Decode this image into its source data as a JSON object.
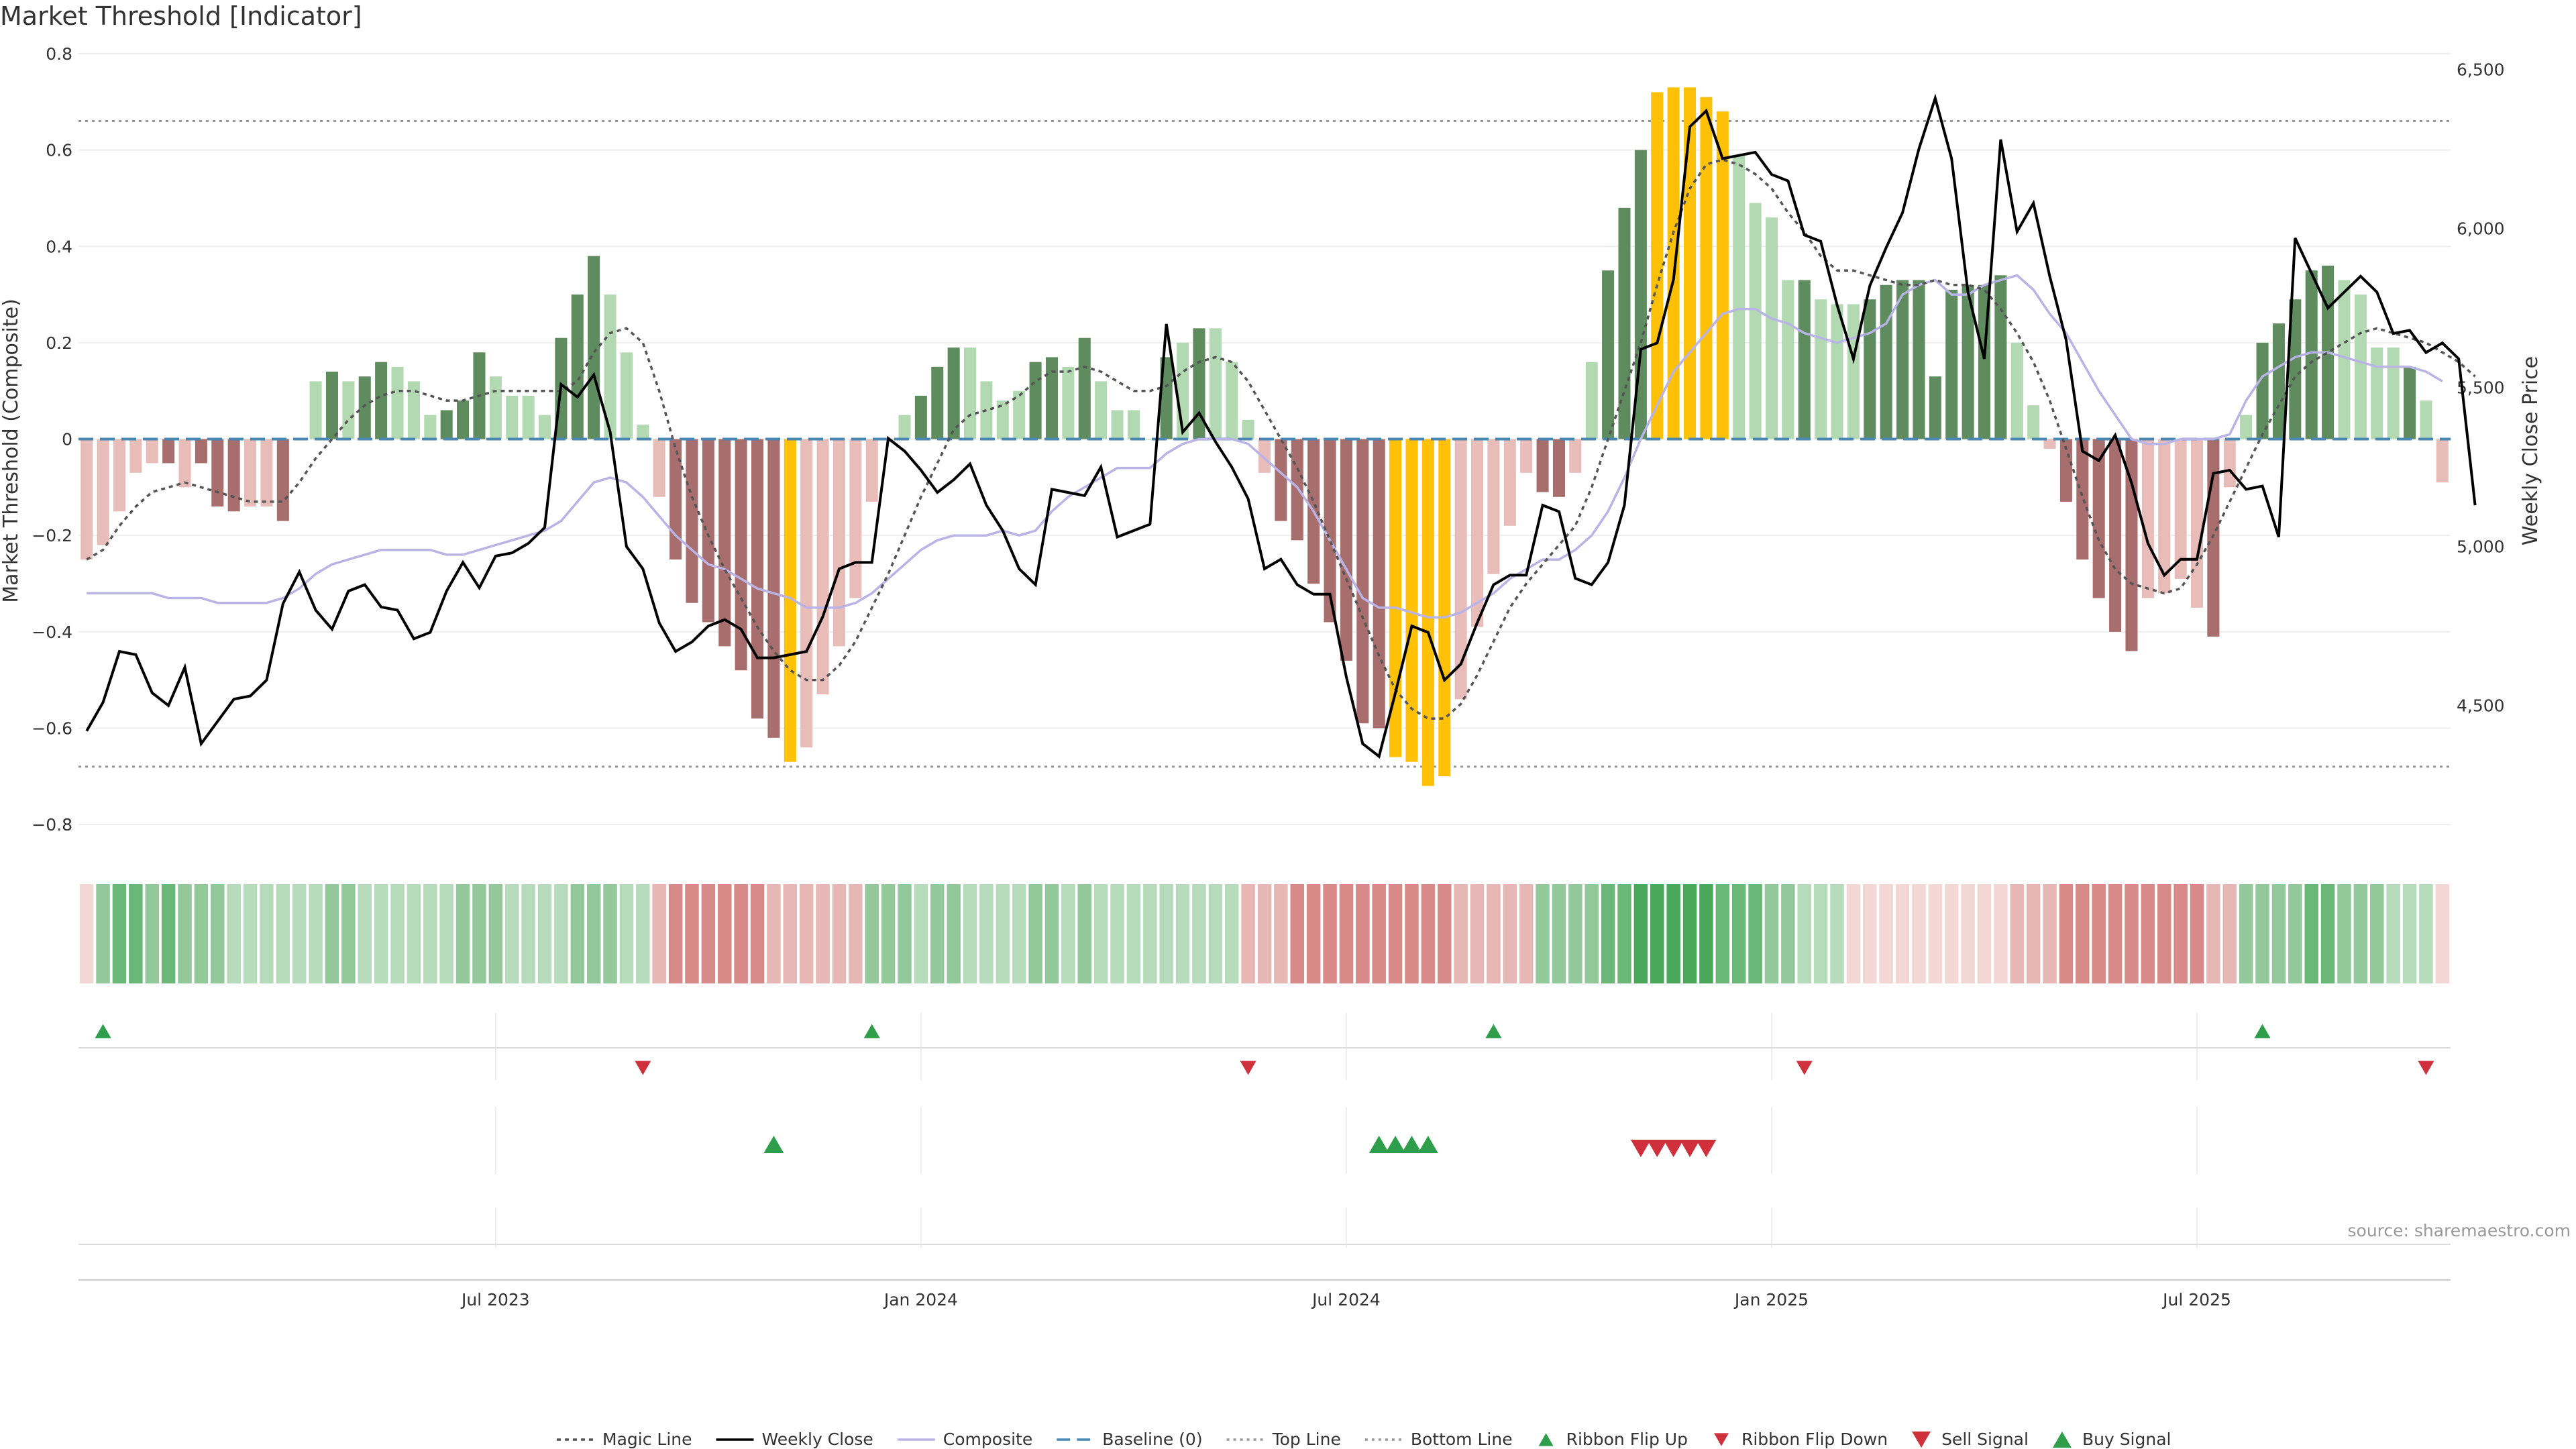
{
  "title": "Market Threshold [Indicator]",
  "source": "source: sharemaestro.com",
  "chart_data": {
    "type": "bar",
    "title": "Market Threshold [Indicator]",
    "ylabel": "Market Threshold (Composite)",
    "y2label": "Weekly Close Price",
    "ylim": [
      -0.85,
      0.8
    ],
    "y2lim": [
      4050,
      6550
    ],
    "yticks": [
      0.8,
      0.6,
      0.4,
      0.2,
      0,
      -0.2,
      -0.4,
      -0.6,
      -0.8
    ],
    "yticklabels": [
      "0.8",
      "0.6",
      "0.4",
      "0.2",
      "0",
      "−0.2",
      "−0.4",
      "−0.6",
      "−0.8"
    ],
    "y2ticks": [
      6500,
      6000,
      5500,
      5000,
      4500
    ],
    "y2ticklabels": [
      "6,500",
      "6,000",
      "5,500",
      "5,000",
      "4,500"
    ],
    "xticks": [
      25,
      51,
      77,
      103,
      129
    ],
    "xticklabels": [
      "Jul 2023",
      "Jan 2024",
      "Jul 2024",
      "Jan 2025",
      "Jul 2025"
    ],
    "top_line": 0.66,
    "bottom_line": -0.68,
    "composite": [
      -0.25,
      -0.22,
      -0.15,
      -0.07,
      -0.05,
      -0.05,
      -0.1,
      -0.05,
      -0.14,
      -0.15,
      -0.14,
      -0.14,
      -0.17,
      0.0,
      0.12,
      0.14,
      0.12,
      0.13,
      0.16,
      0.15,
      0.12,
      0.05,
      0.06,
      0.08,
      0.18,
      0.13,
      0.09,
      0.09,
      0.05,
      0.21,
      0.3,
      0.38,
      0.3,
      0.18,
      0.03,
      -0.12,
      -0.25,
      -0.34,
      -0.38,
      -0.43,
      -0.48,
      -0.58,
      -0.62,
      -0.67,
      -0.64,
      -0.53,
      -0.43,
      -0.33,
      -0.13,
      0.0,
      0.05,
      0.09,
      0.15,
      0.19,
      0.19,
      0.12,
      0.08,
      0.1,
      0.16,
      0.17,
      0.15,
      0.21,
      0.12,
      0.06,
      0.06,
      0.0,
      0.17,
      0.2,
      0.23,
      0.23,
      0.16,
      0.04,
      -0.07,
      -0.17,
      -0.21,
      -0.3,
      -0.38,
      -0.46,
      -0.59,
      -0.6,
      -0.66,
      -0.67,
      -0.72,
      -0.7,
      -0.54,
      -0.39,
      -0.28,
      -0.18,
      -0.07,
      -0.11,
      -0.12,
      -0.07,
      0.16,
      0.35,
      0.48,
      0.6,
      0.72,
      0.73,
      0.73,
      0.71,
      0.68,
      0.59,
      0.49,
      0.46,
      0.33,
      0.33,
      0.29,
      0.28,
      0.28,
      0.29,
      0.32,
      0.33,
      0.33,
      0.13,
      0.31,
      0.32,
      0.32,
      0.34,
      0.2,
      0.07,
      -0.02,
      -0.13,
      -0.25,
      -0.33,
      -0.4,
      -0.44,
      -0.33,
      -0.32,
      -0.29,
      -0.35,
      -0.41,
      -0.1,
      0.05,
      0.2,
      0.24,
      0.29,
      0.35,
      0.36,
      0.33,
      0.3,
      0.19,
      0.19,
      0.15,
      0.08,
      -0.09
    ],
    "bar_colors": [
      "#e8bcb9",
      "#e8bcb9",
      "#e8bcb9",
      "#e8bcb9",
      "#e8bcb9",
      "#a86d6d",
      "#e8bcb9",
      "#a86d6d",
      "#a86d6d",
      "#a86d6d",
      "#e8bcb9",
      "#e8bcb9",
      "#a86d6d",
      "#b3d9b3",
      "#b3d9b3",
      "#5e8c5e",
      "#b3d9b3",
      "#5e8c5e",
      "#5e8c5e",
      "#b3d9b3",
      "#b3d9b3",
      "#b3d9b3",
      "#5e8c5e",
      "#5e8c5e",
      "#5e8c5e",
      "#b3d9b3",
      "#b3d9b3",
      "#b3d9b3",
      "#b3d9b3",
      "#5e8c5e",
      "#5e8c5e",
      "#5e8c5e",
      "#b3d9b3",
      "#b3d9b3",
      "#b3d9b3",
      "#e8bcb9",
      "#a86d6d",
      "#a86d6d",
      "#a86d6d",
      "#a86d6d",
      "#a86d6d",
      "#a86d6d",
      "#a86d6d",
      "#ffc107",
      "#e8bcb9",
      "#e8bcb9",
      "#e8bcb9",
      "#e8bcb9",
      "#e8bcb9",
      "#b3d9b3",
      "#b3d9b3",
      "#5e8c5e",
      "#5e8c5e",
      "#5e8c5e",
      "#b3d9b3",
      "#b3d9b3",
      "#b3d9b3",
      "#b3d9b3",
      "#5e8c5e",
      "#5e8c5e",
      "#b3d9b3",
      "#5e8c5e",
      "#b3d9b3",
      "#b3d9b3",
      "#b3d9b3",
      "#b3d9b3",
      "#5e8c5e",
      "#b3d9b3",
      "#5e8c5e",
      "#b3d9b3",
      "#b3d9b3",
      "#b3d9b3",
      "#e8bcb9",
      "#a86d6d",
      "#a86d6d",
      "#a86d6d",
      "#a86d6d",
      "#a86d6d",
      "#a86d6d",
      "#a86d6d",
      "#ffc107",
      "#ffc107",
      "#ffc107",
      "#ffc107",
      "#e8bcb9",
      "#e8bcb9",
      "#e8bcb9",
      "#e8bcb9",
      "#e8bcb9",
      "#a86d6d",
      "#a86d6d",
      "#e8bcb9",
      "#b3d9b3",
      "#5e8c5e",
      "#5e8c5e",
      "#5e8c5e",
      "#ffc107",
      "#ffc107",
      "#ffc107",
      "#ffc107",
      "#ffc107",
      "#b3d9b3",
      "#b3d9b3",
      "#b3d9b3",
      "#b3d9b3",
      "#5e8c5e",
      "#b3d9b3",
      "#b3d9b3",
      "#b3d9b3",
      "#5e8c5e",
      "#5e8c5e",
      "#5e8c5e",
      "#5e8c5e",
      "#5e8c5e",
      "#5e8c5e",
      "#5e8c5e",
      "#5e8c5e",
      "#5e8c5e",
      "#b3d9b3",
      "#b3d9b3",
      "#e8bcb9",
      "#a86d6d",
      "#a86d6d",
      "#a86d6d",
      "#a86d6d",
      "#a86d6d",
      "#e8bcb9",
      "#e8bcb9",
      "#e8bcb9",
      "#e8bcb9",
      "#a86d6d",
      "#e8bcb9",
      "#b3d9b3",
      "#5e8c5e",
      "#5e8c5e",
      "#5e8c5e",
      "#5e8c5e",
      "#5e8c5e",
      "#b3d9b3",
      "#b3d9b3",
      "#b3d9b3",
      "#b3d9b3",
      "#5e8c5e",
      "#b3d9b3",
      "#e8bcb9"
    ],
    "magic_line": [
      -0.25,
      -0.23,
      -0.18,
      -0.14,
      -0.11,
      -0.1,
      -0.09,
      -0.1,
      -0.11,
      -0.12,
      -0.13,
      -0.13,
      -0.13,
      -0.09,
      -0.04,
      0.0,
      0.04,
      0.07,
      0.09,
      0.1,
      0.1,
      0.09,
      0.08,
      0.08,
      0.09,
      0.1,
      0.1,
      0.1,
      0.1,
      0.1,
      0.12,
      0.18,
      0.22,
      0.23,
      0.2,
      0.1,
      -0.02,
      -0.12,
      -0.2,
      -0.27,
      -0.33,
      -0.39,
      -0.44,
      -0.48,
      -0.5,
      -0.5,
      -0.47,
      -0.42,
      -0.35,
      -0.28,
      -0.2,
      -0.12,
      -0.05,
      0.02,
      0.05,
      0.06,
      0.07,
      0.09,
      0.12,
      0.14,
      0.14,
      0.15,
      0.14,
      0.12,
      0.1,
      0.1,
      0.11,
      0.14,
      0.16,
      0.17,
      0.16,
      0.12,
      0.06,
      0.0,
      -0.06,
      -0.13,
      -0.21,
      -0.29,
      -0.37,
      -0.45,
      -0.52,
      -0.56,
      -0.58,
      -0.58,
      -0.55,
      -0.49,
      -0.42,
      -0.35,
      -0.3,
      -0.26,
      -0.22,
      -0.18,
      -0.1,
      0.0,
      0.1,
      0.2,
      0.32,
      0.43,
      0.52,
      0.57,
      0.58,
      0.57,
      0.55,
      0.52,
      0.47,
      0.43,
      0.38,
      0.35,
      0.35,
      0.34,
      0.33,
      0.32,
      0.32,
      0.33,
      0.32,
      0.32,
      0.31,
      0.27,
      0.22,
      0.16,
      0.08,
      -0.02,
      -0.12,
      -0.21,
      -0.27,
      -0.3,
      -0.31,
      -0.32,
      -0.31,
      -0.26,
      -0.2,
      -0.13,
      -0.06,
      0.01,
      0.07,
      0.13,
      0.16,
      0.18,
      0.2,
      0.22,
      0.23,
      0.22,
      0.21,
      0.2,
      0.18,
      0.16,
      0.13
    ]
  },
  "weekly_close": [
    4420,
    4510,
    4670,
    4660,
    4540,
    4500,
    4620,
    4380,
    4450,
    4520,
    4530,
    4580,
    4820,
    4920,
    4800,
    4740,
    4860,
    4880,
    4810,
    4800,
    4710,
    4730,
    4860,
    4950,
    4870,
    4970,
    4980,
    5010,
    5060,
    5510,
    5470,
    5540,
    5360,
    5000,
    4930,
    4760,
    4670,
    4700,
    4750,
    4770,
    4740,
    4650,
    4650,
    4660,
    4670,
    4780,
    4930,
    4950,
    4950,
    5340,
    5300,
    5240,
    5170,
    5210,
    5260,
    5130,
    5050,
    4930,
    4880,
    5180,
    5170,
    5160,
    5250,
    5030,
    5050,
    5070,
    5700,
    5360,
    5420,
    5330,
    5250,
    5150,
    4930,
    4960,
    4880,
    4850,
    4850,
    4590,
    4380,
    4340,
    4540,
    4750,
    4730,
    4580,
    4630,
    4760,
    4880,
    4910,
    4910,
    5130,
    5110,
    4900,
    4880,
    4950,
    5130,
    5620,
    5640,
    5840,
    6320,
    6370,
    6220,
    6230,
    6240,
    6170,
    6150,
    5980,
    5960,
    5760,
    5590,
    5820,
    5940,
    6050,
    6250,
    6410,
    6220,
    5800,
    5590,
    6280,
    5990,
    6080,
    5850,
    5650,
    5300,
    5270,
    5350,
    5200,
    5010,
    4910,
    4960,
    4960,
    5230,
    5240,
    5180,
    5190,
    5030,
    5970,
    5860,
    5750,
    5800,
    5850,
    5800,
    5670,
    5680,
    5610,
    5640,
    5590,
    5130
  ],
  "composite_line": [
    -0.32,
    -0.32,
    -0.32,
    -0.32,
    -0.32,
    -0.33,
    -0.33,
    -0.33,
    -0.34,
    -0.34,
    -0.34,
    -0.34,
    -0.33,
    -0.31,
    -0.28,
    -0.26,
    -0.25,
    -0.24,
    -0.23,
    -0.23,
    -0.23,
    -0.23,
    -0.24,
    -0.24,
    -0.23,
    -0.22,
    -0.21,
    -0.2,
    -0.19,
    -0.17,
    -0.13,
    -0.09,
    -0.08,
    -0.09,
    -0.12,
    -0.16,
    -0.2,
    -0.23,
    -0.26,
    -0.27,
    -0.29,
    -0.31,
    -0.32,
    -0.33,
    -0.35,
    -0.35,
    -0.35,
    -0.34,
    -0.32,
    -0.29,
    -0.26,
    -0.23,
    -0.21,
    -0.2,
    -0.2,
    -0.2,
    -0.19,
    -0.2,
    -0.19,
    -0.15,
    -0.12,
    -0.1,
    -0.08,
    -0.06,
    -0.06,
    -0.06,
    -0.03,
    -0.01,
    0.0,
    0.0,
    0.0,
    -0.01,
    -0.04,
    -0.07,
    -0.1,
    -0.15,
    -0.21,
    -0.27,
    -0.33,
    -0.35,
    -0.35,
    -0.36,
    -0.37,
    -0.37,
    -0.36,
    -0.34,
    -0.32,
    -0.29,
    -0.27,
    -0.25,
    -0.25,
    -0.23,
    -0.2,
    -0.15,
    -0.08,
    0.0,
    0.07,
    0.14,
    0.18,
    0.22,
    0.26,
    0.27,
    0.27,
    0.25,
    0.24,
    0.22,
    0.21,
    0.2,
    0.21,
    0.22,
    0.24,
    0.3,
    0.32,
    0.33,
    0.3,
    0.3,
    0.32,
    0.33,
    0.34,
    0.31,
    0.26,
    0.22,
    0.16,
    0.1,
    0.05,
    0.0,
    -0.01,
    -0.01,
    0.0,
    0.0,
    0.0,
    0.01,
    0.08,
    0.13,
    0.15,
    0.17,
    0.18,
    0.18,
    0.17,
    0.16,
    0.15,
    0.15,
    0.15,
    0.14,
    0.12
  ],
  "ribbon": {
    "colors": [
      "#f2d7d5",
      "#92c89a",
      "#6ab878",
      "#6ab878",
      "#92c89a",
      "#6ab878",
      "#92c89a",
      "#92c89a",
      "#92c89a",
      "#b6dbbb",
      "#b6dbbb",
      "#b6dbbb",
      "#b6dbbb",
      "#b6dbbb",
      "#b6dbbb",
      "#92c89a",
      "#92c89a",
      "#b6dbbb",
      "#b6dbbb",
      "#b6dbbb",
      "#b6dbbb",
      "#b6dbbb",
      "#b6dbbb",
      "#92c89a",
      "#92c89a",
      "#92c89a",
      "#b6dbbb",
      "#b6dbbb",
      "#b6dbbb",
      "#b6dbbb",
      "#92c89a",
      "#92c89a",
      "#92c89a",
      "#b6dbbb",
      "#b6dbbb",
      "#e6b7b5",
      "#d88a88",
      "#d88a88",
      "#d88a88",
      "#d88a88",
      "#d88a88",
      "#d88a88",
      "#e6b7b5",
      "#e6b7b5",
      "#e6b7b5",
      "#e6b7b5",
      "#e6b7b5",
      "#e6b7b5",
      "#92c89a",
      "#92c89a",
      "#92c89a",
      "#b6dbbb",
      "#92c89a",
      "#92c89a",
      "#b6dbbb",
      "#b6dbbb",
      "#b6dbbb",
      "#b6dbbb",
      "#92c89a",
      "#92c89a",
      "#b6dbbb",
      "#92c89a",
      "#b6dbbb",
      "#b6dbbb",
      "#b6dbbb",
      "#b6dbbb",
      "#b6dbbb",
      "#b6dbbb",
      "#b6dbbb",
      "#b6dbbb",
      "#b6dbbb",
      "#e6b7b5",
      "#e6b7b5",
      "#e6b7b5",
      "#d88a88",
      "#d88a88",
      "#d88a88",
      "#d88a88",
      "#d88a88",
      "#d88a88",
      "#d88a88",
      "#d88a88",
      "#d88a88",
      "#d88a88",
      "#e6b7b5",
      "#e6b7b5",
      "#e6b7b5",
      "#e6b7b5",
      "#e6b7b5",
      "#92c89a",
      "#92c89a",
      "#92c89a",
      "#92c89a",
      "#6ab878",
      "#6ab878",
      "#4aa85c",
      "#4aa85c",
      "#4aa85c",
      "#4aa85c",
      "#4aa85c",
      "#6ab878",
      "#6ab878",
      "#6ab878",
      "#92c89a",
      "#92c89a",
      "#b6dbbb",
      "#b6dbbb",
      "#b6dbbb",
      "#f2d7d5",
      "#f2d7d5",
      "#f2d7d5",
      "#f2d7d5",
      "#f2d7d5",
      "#f2d7d5",
      "#f2d7d5",
      "#f2d7d5",
      "#f2d7d5",
      "#f2d7d5",
      "#e6b7b5",
      "#e6b7b5",
      "#e6b7b5",
      "#d88a88",
      "#d88a88",
      "#d88a88",
      "#d88a88",
      "#d88a88",
      "#d88a88",
      "#d88a88",
      "#d88a88",
      "#d88a88",
      "#e6b7b5",
      "#e6b7b5",
      "#92c89a",
      "#92c89a",
      "#92c89a",
      "#92c89a",
      "#6ab878",
      "#6ab878",
      "#92c89a",
      "#92c89a",
      "#92c89a",
      "#b6dbbb",
      "#b6dbbb",
      "#b6dbbb",
      "#f2d7d5"
    ]
  },
  "signals": {
    "ribbon_flip_up": [
      1,
      48,
      86,
      133
    ],
    "ribbon_flip_down": [
      34,
      71,
      105,
      143
    ],
    "buy_signal": [
      42,
      79,
      80,
      81,
      82
    ],
    "sell_signal": [
      95,
      96,
      97,
      98,
      99
    ]
  },
  "colors": {
    "up_light": "#b3d9b3",
    "up_dark": "#5e8c5e",
    "down_light": "#e8bcb9",
    "down_dark": "#a86d6d",
    "extreme": "#ffc107",
    "close": "#000000",
    "composite": "#b9b3e6",
    "baseline": "#4a87b5",
    "flip_up": "#2e9e4b",
    "flip_down": "#d0303c"
  },
  "legend": [
    {
      "label": "Magic Line",
      "kind": "dotted-dark"
    },
    {
      "label": "Weekly Close",
      "kind": "solid-black"
    },
    {
      "label": "Composite",
      "kind": "solid-lavender"
    },
    {
      "label": "Baseline (0)",
      "kind": "dashed-blue"
    },
    {
      "label": "Top Line",
      "kind": "dotted-grey"
    },
    {
      "label": "Bottom Line",
      "kind": "dotted-grey"
    },
    {
      "label": "Ribbon Flip Up",
      "kind": "triangle-up-green"
    },
    {
      "label": "Ribbon Flip Down",
      "kind": "triangle-down-red"
    },
    {
      "label": "Sell Signal",
      "kind": "triangle-down-red-large"
    },
    {
      "label": "Buy Signal",
      "kind": "triangle-up-green-large"
    }
  ]
}
